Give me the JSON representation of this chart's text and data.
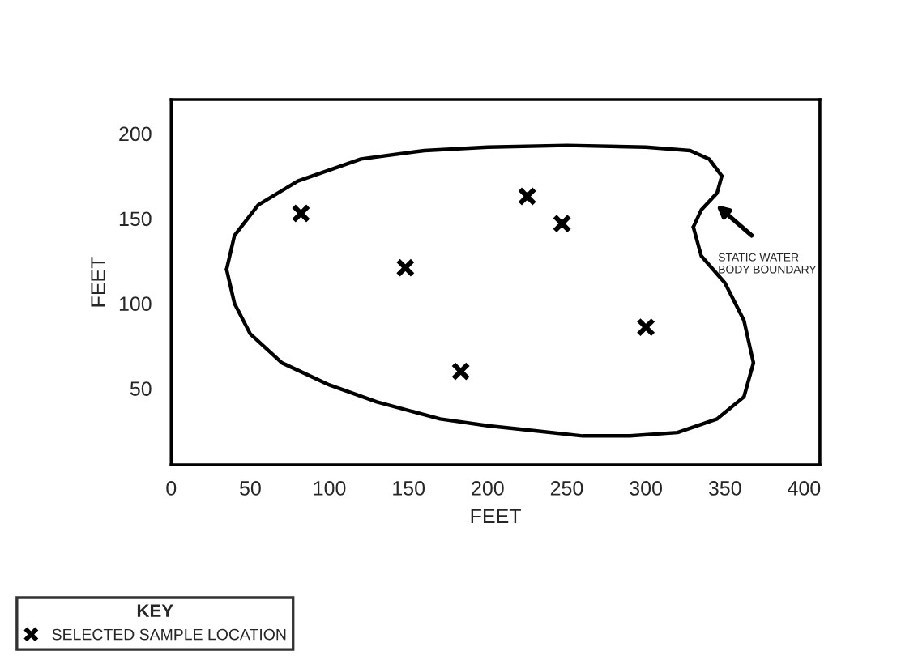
{
  "chart_data": {
    "type": "scatter",
    "xlabel": "FEET",
    "ylabel": "FEET",
    "legend_title": "KEY",
    "legend": "bottom left",
    "grid": false,
    "xlim": [
      0,
      410
    ],
    "ylim": [
      5,
      220
    ],
    "xticks": [
      0,
      50,
      100,
      150,
      200,
      250,
      300,
      350,
      400
    ],
    "yticks": [
      50,
      100,
      150,
      200
    ],
    "series": [
      {
        "type": "line",
        "color": "#000000",
        "line_style": "solid",
        "marker": "none",
        "x": [
          35,
          40,
          55,
          80,
          120,
          160,
          200,
          250,
          300,
          328,
          340,
          348
        ],
        "values": [
          120,
          140,
          158,
          172,
          185,
          190,
          192,
          193,
          192,
          190,
          185,
          175
        ]
      },
      {
        "type": "line",
        "color": "#000000",
        "line_style": "solid",
        "marker": "none",
        "x": [
          348,
          345,
          335,
          330
        ],
        "values": [
          175,
          165,
          155,
          145
        ]
      },
      {
        "type": "line",
        "color": "#000000",
        "line_style": "solid",
        "marker": "none",
        "x": [
          330,
          335,
          350,
          362,
          368
        ],
        "values": [
          145,
          128,
          112,
          90,
          65
        ]
      },
      {
        "type": "line",
        "color": "#000000",
        "line_style": "solid",
        "marker": "none",
        "x": [
          368,
          362,
          345,
          320,
          290,
          260,
          230,
          200,
          170,
          130,
          100,
          70,
          50,
          40,
          35
        ],
        "values": [
          65,
          45,
          32,
          24,
          22,
          22,
          25,
          28,
          32,
          42,
          52,
          65,
          82,
          100,
          120
        ]
      },
      {
        "name": "SELECTED SAMPLE LOCATION",
        "color": "#000000",
        "marker": "cross",
        "x": [
          82,
          148,
          183,
          225,
          247,
          300
        ],
        "values": [
          153,
          121,
          60,
          163,
          147,
          86
        ]
      }
    ],
    "annotations": [
      "STATIC WATER\nBODY BOUNDARY"
    ]
  }
}
